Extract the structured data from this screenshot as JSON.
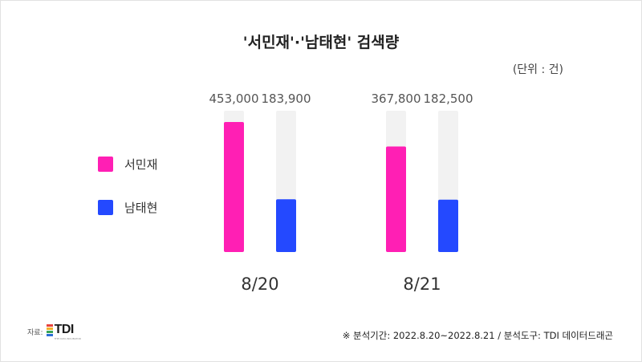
{
  "title": "'서민재'·'남태현' 검색량",
  "unit_label": "(단위 : 건)",
  "legend": [
    {
      "label": "서민재",
      "color": "#ff1fb4"
    },
    {
      "label": "남태현",
      "color": "#2449ff"
    }
  ],
  "source": {
    "prefix": "자료:",
    "logo_text": "TDI",
    "logo_sub": "THE DATA INCUBATOR"
  },
  "footnote": "※ 분석기간: 2022.8.20~2022.8.21 / 분석도구: TDI 데이터드래곤",
  "chart_data": {
    "type": "bar",
    "title": "'서민재'·'남태현' 검색량",
    "categories": [
      "8/20",
      "8/21"
    ],
    "series": [
      {
        "name": "서민재",
        "values": [
          453000,
          367800
        ],
        "value_labels": [
          "453,000",
          "367,800"
        ],
        "color": "#ff1fb4"
      },
      {
        "name": "남태현",
        "values": [
          183900,
          182500
        ],
        "value_labels": [
          "183,900",
          "182,500"
        ],
        "color": "#2449ff"
      }
    ],
    "track_color": "#f2f2f2",
    "legend_position": "left",
    "grid": false
  }
}
